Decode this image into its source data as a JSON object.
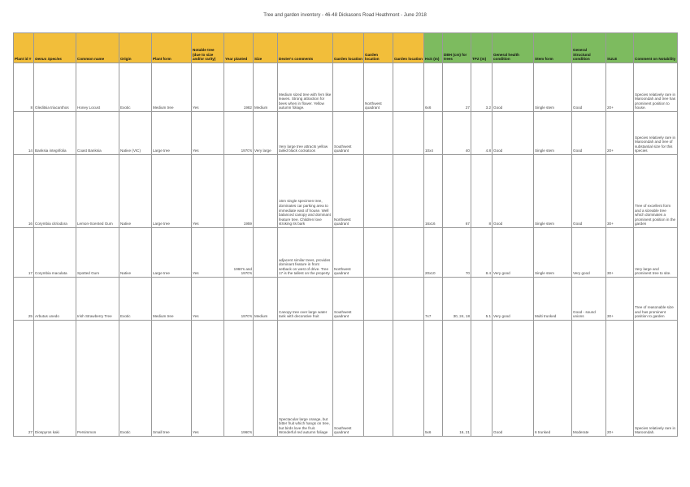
{
  "title": "Tree and garden inventory - 46-48 Dickasons Road Heathmont - June 2018",
  "headers": [
    "Plant id #",
    "Genus Species",
    "Common name",
    "Origin",
    "Plant form",
    "Notable tree (due to size and/or rarity)",
    "Year planted",
    "Size",
    "Dexter's comments",
    "Garden location",
    "Garden location",
    "Garden location",
    "HxS (m)",
    "DBH (cm) for trees",
    "TPZ (m)",
    "General health condition",
    "Stem form",
    "General Structural condition",
    "SULE",
    "Comment on Notability"
  ],
  "rows": [
    {
      "id": "8",
      "genus": "Gleditsia triacanthos",
      "common": "Honey Locust",
      "origin": "Exotic",
      "form": "Medium tree",
      "notable": "Yes",
      "year": "1982",
      "size": "Medium",
      "dexter": "Medium sized tree with fern like leaves. Strong attraction for bees when in flower. Yellow autumn foliage.",
      "loc1": "",
      "loc2": "Northwest quadrant",
      "loc3": "",
      "hxs": "6x6",
      "dbh": "27",
      "tpz": "3.2",
      "health": "Good",
      "stem": "Single stem",
      "structural": "Good",
      "sule": "20+",
      "notability": "Species relatively rare in Maroondah and tree has prominent position to house."
    },
    {
      "id": "14",
      "genus": "Banksia integrifolia",
      "common": "Coast Banksia",
      "origin": "Native (VIC)",
      "form": "Large tree",
      "notable": "Yes",
      "year": "1970's",
      "size": "Very large",
      "dexter": "Very large tree attracts yellow tailed black cockatoos",
      "loc1": "Southwest quadrant",
      "loc2": "",
      "loc3": "",
      "hxs": "10x4",
      "dbh": "40",
      "tpz": "4.8",
      "health": "Good",
      "stem": "Single stem",
      "structural": "Good",
      "sule": "20+",
      "notability": "Species relatively rare in Maroondah and tree of substantial size for this species"
    },
    {
      "id": "16",
      "genus": "Corymbia citriodora",
      "common": "Lemon-Scented Gum",
      "origin": "Native",
      "form": "Large tree",
      "notable": "Yes",
      "year": "1959",
      "size": "",
      "dexter": "16m single specimen tree, dominates car parking area to immediate east of house. Well balanced canopy and dominant feature tree. Children love stroking its bark",
      "loc1": "Northwest quadrant",
      "loc2": "",
      "loc3": "",
      "hxs": "16x16",
      "dbh": "67",
      "tpz": "8",
      "health": "Good",
      "stem": "Single stem",
      "structural": "Good",
      "sule": "30+",
      "notability": "Tree of excellent form and a sizeable tree which dominates a prominent position in the garden"
    },
    {
      "id": "17",
      "genus": "Corymbia maculata",
      "common": "Spotted Gum",
      "origin": "Native",
      "form": "Large tree",
      "notable": "Yes",
      "year": "1960's and 1970's",
      "size": "",
      "dexter": "adjacent similar trees, provides dominant feature in front setback on west of drive. Tree 17 is the tallest on the property",
      "loc1": "Northwest quadrant",
      "loc2": "",
      "loc3": "",
      "hxs": "20x10",
      "dbh": "70",
      "tpz": "8.4",
      "health": "Very good",
      "stem": "Single stem",
      "structural": "Very good",
      "sule": "30+",
      "notability": "Very large and prominent tree to site."
    },
    {
      "id": "25",
      "genus": "Arbutus unedo",
      "common": "Irish Strawberry Tree",
      "origin": "Exotic",
      "form": "Medium tree",
      "notable": "Yes",
      "year": "1970's",
      "size": "Medium",
      "dexter": "Canopy tree over large water tank with decorative fruit",
      "loc1": "Southwest quadrant",
      "loc2": "",
      "loc3": "",
      "hxs": "7x7",
      "dbh": "30, 24, 18",
      "tpz": "5.1",
      "health": "Very good",
      "stem": "Multi trunked",
      "structural": "Good - sound unions",
      "sule": "30+",
      "notability": "Tree of reasonable size and has prominent position to garden"
    },
    {
      "id": "27",
      "genus": "Diospyros kaki",
      "common": "Persimmon",
      "origin": "Exotic",
      "form": "Small tree",
      "notable": "Yes",
      "year": "1960's",
      "size": "",
      "dexter": "Spectacular large orange, but bitter fruit which hangs on tree, but birds love the fruit. Wonderful red autumn foliage",
      "loc1": "Southwest quadrant",
      "loc2": "",
      "loc3": "",
      "hxs": "5x6",
      "dbh": "16, 21",
      "tpz": "",
      "health": "Good",
      "stem": "6 trunked",
      "structural": "Moderate",
      "sule": "20+",
      "notability": "Species relatively rare in Maroondah."
    }
  ]
}
